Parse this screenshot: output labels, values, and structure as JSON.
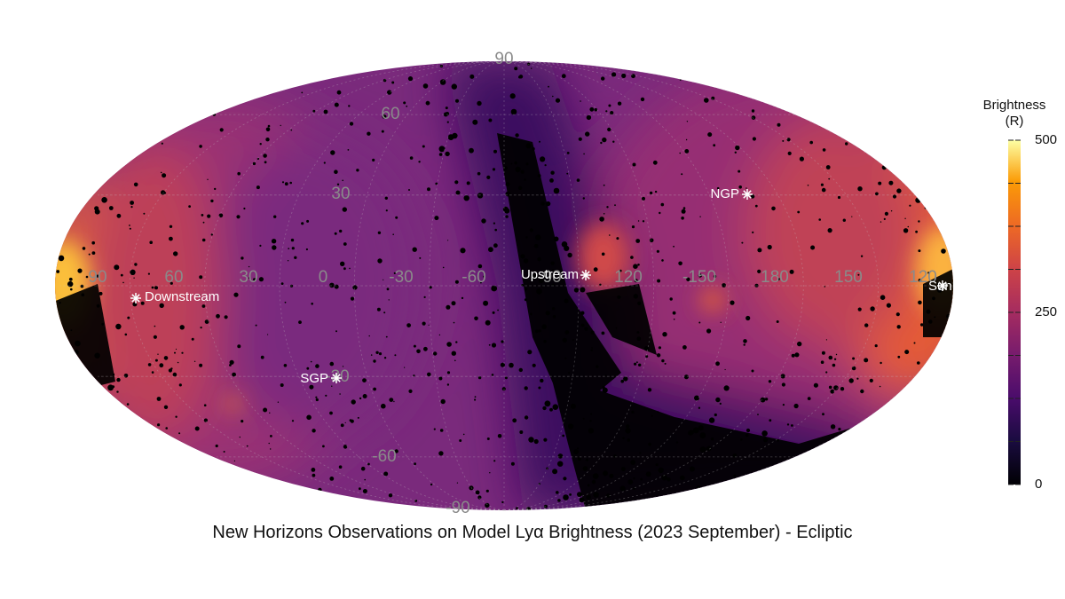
{
  "chart_data": {
    "type": "heatmap",
    "projection": "mollweide (ecliptic coordinates)",
    "title": "New Horizons Observations on Model Lyα Brightness (2023 September) - Ecliptic",
    "colorbar": {
      "label_line1": "Brightness",
      "label_line2": "(R)",
      "range": [
        0,
        500
      ],
      "ticks": [
        0,
        250,
        500
      ],
      "tick_labels": [
        "0",
        "250",
        "500"
      ],
      "colormap": "inferno"
    },
    "latitude_ticks": [
      90,
      60,
      30,
      -30,
      -60,
      -90
    ],
    "latitude_tick_labels": [
      "90",
      "60",
      "30",
      "-30",
      "-60",
      "-90"
    ],
    "longitude_ticks": [
      90,
      60,
      30,
      0,
      -30,
      -60,
      -90,
      120,
      -150,
      180,
      150,
      120
    ],
    "longitude_tick_labels": [
      "90",
      "60",
      "30",
      "0",
      "-30",
      "-60",
      "-90",
      "120",
      "-150",
      "180",
      "150",
      "120"
    ],
    "markers": [
      {
        "label": "Downstream",
        "lon": 76,
        "lat": -6
      },
      {
        "label": "Upstream",
        "lon": -104,
        "lat": 4
      },
      {
        "label": "NGP",
        "lon": 166,
        "lat": 30
      },
      {
        "label": "SGP",
        "lon": -8,
        "lat": -30
      },
      {
        "label": "Sun",
        "lon": 110,
        "lat": -2
      }
    ],
    "features": {
      "brightest_regions": "Upstream side near the Sun direction (east & west limbs, up to ~500 R)",
      "dimmest_band": "Diagonal band of ~50-100 R from the north pole through lon -60 down to the south",
      "typical_level": "~150-250 R"
    }
  }
}
